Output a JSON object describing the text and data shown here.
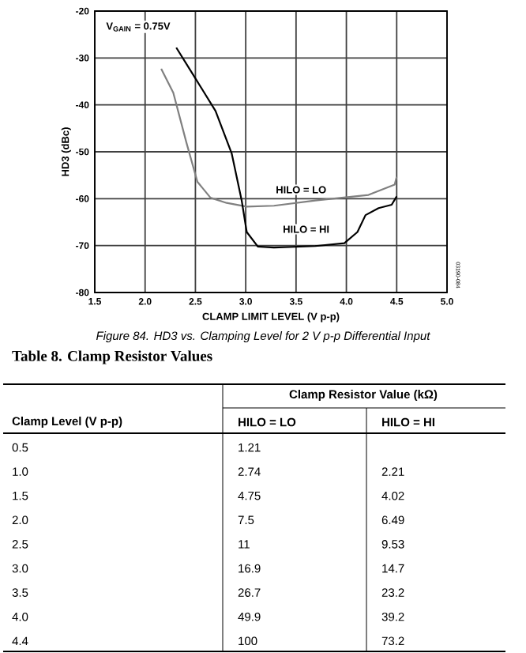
{
  "chart_data": [
    {
      "type": "line",
      "xlabel": "CLAMP LIMIT LEVEL (V p-p)",
      "ylabel": "HD3 (dBc)",
      "xlim": [
        1.5,
        5.0
      ],
      "ylim": [
        -80,
        -20
      ],
      "xticks": [
        {
          "value": 1.5,
          "label": "1.5"
        },
        {
          "value": 2.0,
          "label": "2.0"
        },
        {
          "value": 2.5,
          "label": "2.5"
        },
        {
          "value": 3.0,
          "label": "3.0"
        },
        {
          "value": 3.5,
          "label": "3.5"
        },
        {
          "value": 4.0,
          "label": "4.0"
        },
        {
          "value": 4.5,
          "label": "4.5"
        },
        {
          "value": 5.0,
          "label": "5.0"
        }
      ],
      "yticks": [
        -80,
        -70,
        -60,
        -50,
        -40,
        -30,
        -20
      ],
      "grid": true,
      "marker": "none",
      "series": [
        {
          "color": "#808080",
          "x": [
            2.16,
            2.28,
            2.41,
            2.52,
            2.65,
            2.81,
            3.01,
            3.28,
            3.69,
            4.22,
            4.48,
            4.5
          ],
          "values": [
            -32.3,
            -37.4,
            -48,
            -56.4,
            -59.8,
            -60.9,
            -61.7,
            -61.5,
            -60.4,
            -59.2,
            -57,
            -55.3
          ]
        },
        {
          "color": "#000000",
          "x": [
            2.31,
            2.49,
            2.7,
            2.86,
            2.96,
            3.01,
            3.12,
            3.28,
            3.69,
            3.98,
            4.11,
            4.19,
            4.32,
            4.45,
            4.5
          ],
          "values": [
            -27.8,
            -34,
            -41.3,
            -50.3,
            -60.4,
            -67.1,
            -70.2,
            -70.4,
            -70.1,
            -69.5,
            -67.1,
            -63.5,
            -62,
            -61.3,
            -59.5
          ]
        }
      ],
      "annotations": [
        "HILO = LO",
        "HILO = HI",
        "V$_{GAIN}$ = 0.75V",
        "Figure 84. HD3 vs. Clamping Level for 2 V p-p Differential Input",
        "03190-084"
      ]
    },
    {
      "type": "other",
      "title": "Table 8. Clamp Resistor Values",
      "xlabel": "Clamp Level (V p-p)",
      "ylabel": "Clamp Resistor Value (kΩ)",
      "categories": [
        "0.5",
        "1.0",
        "1.5",
        "2.0",
        "2.5",
        "3.0",
        "3.5",
        "4.0",
        "4.4"
      ],
      "data_labels": true,
      "series": [
        {
          "name": "HILO = LO",
          "values": [
            1.21,
            2.74,
            4.75,
            7.5,
            11,
            16.9,
            26.7,
            49.9,
            100
          ]
        },
        {
          "name": "HILO = HI",
          "values": [
            null,
            2.21,
            4.02,
            6.49,
            9.53,
            14.7,
            23.2,
            39.2,
            73.2
          ]
        }
      ]
    }
  ]
}
